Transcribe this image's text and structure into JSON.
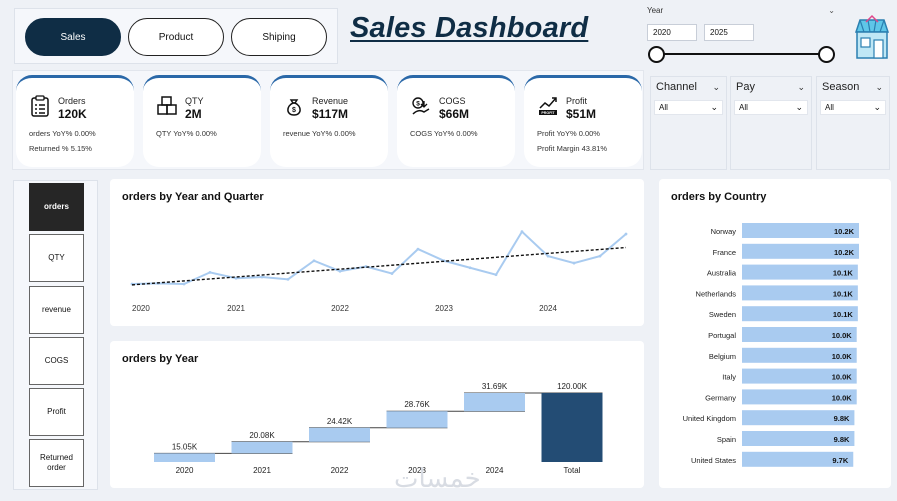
{
  "nav": {
    "tabs": [
      {
        "label": "Sales",
        "active": true
      },
      {
        "label": "Product",
        "active": false
      },
      {
        "label": "Shiping",
        "active": false
      }
    ]
  },
  "header": {
    "title": "Sales Dashboard"
  },
  "year_filter": {
    "label": "Year",
    "from": "2020",
    "to": "2025"
  },
  "kpis": [
    {
      "name": "Orders",
      "value": "120K",
      "line1": "orders YoY% 0.00%",
      "line2": "Returned % 5.15%",
      "icon": "clipboard-icon"
    },
    {
      "name": "QTY",
      "value": "2M",
      "line1": "QTY YoY% 0.00%",
      "line2": "",
      "icon": "boxes-icon"
    },
    {
      "name": "Revenue",
      "value": "$117M",
      "line1": "revenue YoY% 0.00%",
      "line2": "",
      "icon": "money-bag-icon"
    },
    {
      "name": "COGS",
      "value": "$66M",
      "line1": "COGS YoY% 0.00%",
      "line2": "",
      "icon": "coins-hand-icon"
    },
    {
      "name": "Profit",
      "value": "$51M",
      "line1": "Profit YoY% 0.00%",
      "line2": "Profit Margin 43.81%",
      "icon": "profit-chart-icon"
    }
  ],
  "filters": [
    {
      "label": "Channel",
      "value": "All"
    },
    {
      "label": "Pay",
      "value": "All"
    },
    {
      "label": "Season",
      "value": "All"
    }
  ],
  "metric_selector": [
    {
      "label": "orders",
      "active": true
    },
    {
      "label": "QTY",
      "active": false
    },
    {
      "label": "revenue",
      "active": false
    },
    {
      "label": "COGS",
      "active": false
    },
    {
      "label": "Profit",
      "active": false
    },
    {
      "label": "Returned order",
      "active": false
    }
  ],
  "watermark": "خمسات",
  "colors": {
    "navy": "#0f2d45",
    "accent": "#2a68a8",
    "bar": "#a9cbf0",
    "total": "#234c74",
    "line": "#a9cbf0"
  },
  "chart_data": [
    {
      "type": "line",
      "title": "orders by Year and Quarter",
      "x_ticks": [
        "2020",
        "2021",
        "2022",
        "2023",
        "2024"
      ],
      "quarters": [
        "2020-Q1",
        "2020-Q2",
        "2020-Q3",
        "2020-Q4",
        "2021-Q1",
        "2021-Q2",
        "2021-Q3",
        "2021-Q4",
        "2022-Q1",
        "2022-Q2",
        "2022-Q3",
        "2022-Q4",
        "2023-Q1",
        "2023-Q2",
        "2023-Q3",
        "2023-Q4",
        "2024-Q1",
        "2024-Q2",
        "2024-Q3",
        "2024-Q4"
      ],
      "values": [
        3.6,
        3.65,
        3.6,
        4.6,
        4.1,
        4.2,
        4.0,
        5.6,
        4.7,
        5.1,
        4.5,
        6.6,
        5.6,
        5.0,
        4.4,
        8.1,
        6.0,
        5.4,
        6.0,
        7.9
      ],
      "trendline": true
    },
    {
      "type": "waterfall",
      "title": "orders by Year",
      "categories": [
        "2020",
        "2021",
        "2022",
        "2023",
        "2024",
        "Total"
      ],
      "values": [
        15.05,
        20.08,
        24.42,
        28.76,
        31.69,
        120.0
      ],
      "labels": [
        "15.05K",
        "20.08K",
        "24.42K",
        "28.76K",
        "31.69K",
        "120.00K"
      ]
    },
    {
      "type": "bar",
      "orientation": "horizontal",
      "title": "orders by Country",
      "categories": [
        "Norway",
        "France",
        "Australia",
        "Netherlands",
        "Sweden",
        "Portugal",
        "Belgium",
        "Italy",
        "Germany",
        "United Kingdom",
        "Spain",
        "United States"
      ],
      "values": [
        10.2,
        10.2,
        10.1,
        10.1,
        10.1,
        10.0,
        10.0,
        10.0,
        10.0,
        9.8,
        9.8,
        9.7
      ],
      "labels": [
        "10.2K",
        "10.2K",
        "10.1K",
        "10.1K",
        "10.1K",
        "10.0K",
        "10.0K",
        "10.0K",
        "10.0K",
        "9.8K",
        "9.8K",
        "9.7K"
      ]
    }
  ]
}
